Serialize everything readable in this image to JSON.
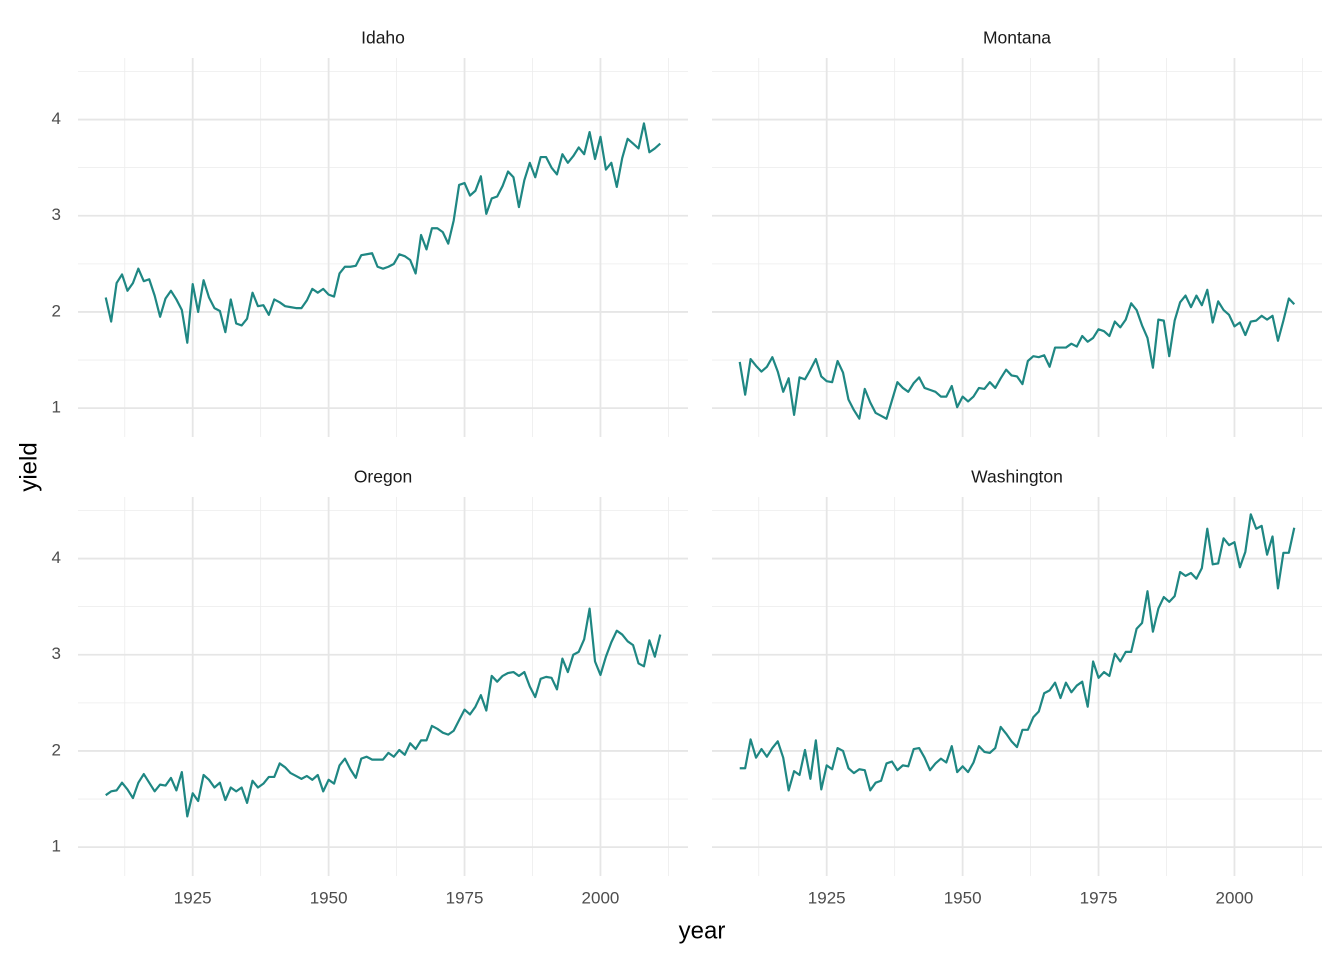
{
  "chart_data": {
    "type": "line",
    "x_label": "year",
    "y_label": "yield",
    "color": "#1f8783",
    "grid": true,
    "minor_grid": true,
    "xlim": [
      1903.9,
      2016.1
    ],
    "ylim": [
      0.7,
      4.64
    ],
    "xticks": [
      1925,
      1950,
      1975,
      2000
    ],
    "yticks": [
      1,
      2,
      3,
      4
    ],
    "x": [
      1909,
      1910,
      1911,
      1912,
      1913,
      1914,
      1915,
      1916,
      1917,
      1918,
      1919,
      1920,
      1921,
      1922,
      1923,
      1924,
      1925,
      1926,
      1927,
      1928,
      1929,
      1930,
      1931,
      1932,
      1933,
      1934,
      1935,
      1936,
      1937,
      1938,
      1939,
      1940,
      1941,
      1942,
      1943,
      1944,
      1945,
      1946,
      1947,
      1948,
      1949,
      1950,
      1951,
      1952,
      1953,
      1954,
      1955,
      1956,
      1957,
      1958,
      1959,
      1960,
      1961,
      1962,
      1963,
      1964,
      1965,
      1966,
      1967,
      1968,
      1969,
      1970,
      1971,
      1972,
      1973,
      1974,
      1975,
      1976,
      1977,
      1978,
      1979,
      1980,
      1981,
      1982,
      1983,
      1984,
      1985,
      1986,
      1987,
      1988,
      1989,
      1990,
      1991,
      1992,
      1993,
      1994,
      1995,
      1996,
      1997,
      1998,
      1999,
      2000,
      2001,
      2002,
      2003,
      2004,
      2005,
      2006,
      2007,
      2008,
      2009,
      2010,
      2011
    ],
    "panels": [
      {
        "title": "Idaho",
        "values": [
          2.15,
          1.9,
          2.3,
          2.39,
          2.22,
          2.3,
          2.45,
          2.32,
          2.34,
          2.17,
          1.95,
          2.14,
          2.22,
          2.13,
          2.02,
          1.68,
          2.29,
          2.0,
          2.33,
          2.15,
          2.04,
          2.01,
          1.79,
          2.13,
          1.88,
          1.86,
          1.93,
          2.2,
          2.06,
          2.07,
          1.97,
          2.13,
          2.1,
          2.06,
          2.05,
          2.04,
          2.04,
          2.12,
          2.24,
          2.2,
          2.24,
          2.18,
          2.16,
          2.4,
          2.47,
          2.47,
          2.48,
          2.59,
          2.6,
          2.61,
          2.47,
          2.45,
          2.47,
          2.5,
          2.6,
          2.58,
          2.54,
          2.4,
          2.8,
          2.65,
          2.87,
          2.87,
          2.83,
          2.71,
          2.95,
          3.32,
          3.34,
          3.21,
          3.26,
          3.41,
          3.02,
          3.18,
          3.2,
          3.31,
          3.46,
          3.4,
          3.09,
          3.37,
          3.55,
          3.4,
          3.61,
          3.61,
          3.5,
          3.43,
          3.64,
          3.55,
          3.62,
          3.71,
          3.64,
          3.87,
          3.59,
          3.82,
          3.48,
          3.55,
          3.3,
          3.6,
          3.8,
          3.75,
          3.7,
          3.96,
          3.66,
          3.7,
          3.75
        ]
      },
      {
        "title": "Montana",
        "values": [
          1.48,
          1.14,
          1.51,
          1.44,
          1.38,
          1.43,
          1.53,
          1.38,
          1.17,
          1.31,
          0.93,
          1.32,
          1.3,
          1.4,
          1.51,
          1.33,
          1.28,
          1.27,
          1.49,
          1.37,
          1.09,
          0.98,
          0.89,
          1.2,
          1.06,
          0.95,
          0.92,
          0.89,
          1.08,
          1.27,
          1.21,
          1.17,
          1.26,
          1.32,
          1.21,
          1.19,
          1.17,
          1.12,
          1.12,
          1.23,
          1.01,
          1.12,
          1.07,
          1.12,
          1.21,
          1.2,
          1.27,
          1.21,
          1.31,
          1.4,
          1.34,
          1.33,
          1.25,
          1.49,
          1.54,
          1.53,
          1.55,
          1.43,
          1.63,
          1.63,
          1.63,
          1.67,
          1.64,
          1.75,
          1.69,
          1.73,
          1.82,
          1.8,
          1.75,
          1.9,
          1.84,
          1.92,
          2.09,
          2.02,
          1.86,
          1.73,
          1.42,
          1.92,
          1.91,
          1.54,
          1.91,
          2.1,
          2.17,
          2.05,
          2.17,
          2.07,
          2.23,
          1.89,
          2.11,
          2.02,
          1.97,
          1.85,
          1.89,
          1.76,
          1.9,
          1.91,
          1.96,
          1.92,
          1.96,
          1.7,
          1.91,
          2.14,
          2.08
        ]
      },
      {
        "title": "Oregon",
        "values": [
          1.54,
          1.58,
          1.59,
          1.67,
          1.6,
          1.51,
          1.67,
          1.76,
          1.67,
          1.58,
          1.65,
          1.64,
          1.72,
          1.59,
          1.78,
          1.32,
          1.56,
          1.48,
          1.75,
          1.7,
          1.62,
          1.67,
          1.49,
          1.62,
          1.58,
          1.62,
          1.46,
          1.69,
          1.62,
          1.66,
          1.73,
          1.73,
          1.87,
          1.83,
          1.77,
          1.74,
          1.71,
          1.74,
          1.7,
          1.75,
          1.58,
          1.7,
          1.66,
          1.85,
          1.92,
          1.81,
          1.72,
          1.92,
          1.94,
          1.91,
          1.91,
          1.91,
          1.98,
          1.94,
          2.01,
          1.96,
          2.08,
          2.02,
          2.11,
          2.11,
          2.26,
          2.23,
          2.19,
          2.17,
          2.21,
          2.32,
          2.43,
          2.38,
          2.46,
          2.58,
          2.42,
          2.78,
          2.72,
          2.78,
          2.81,
          2.82,
          2.78,
          2.82,
          2.67,
          2.56,
          2.75,
          2.77,
          2.76,
          2.64,
          2.96,
          2.82,
          3.0,
          3.03,
          3.16,
          3.48,
          2.93,
          2.79,
          2.98,
          3.13,
          3.25,
          3.21,
          3.14,
          3.1,
          2.91,
          2.88,
          3.15,
          2.98,
          3.21
        ]
      },
      {
        "title": "Washington",
        "values": [
          1.82,
          1.82,
          2.12,
          1.93,
          2.02,
          1.94,
          2.03,
          2.1,
          1.93,
          1.59,
          1.79,
          1.75,
          2.01,
          1.71,
          2.11,
          1.6,
          1.85,
          1.81,
          2.03,
          2.0,
          1.82,
          1.77,
          1.81,
          1.8,
          1.59,
          1.67,
          1.69,
          1.87,
          1.89,
          1.8,
          1.85,
          1.84,
          2.02,
          2.03,
          1.93,
          1.8,
          1.87,
          1.92,
          1.88,
          2.05,
          1.78,
          1.84,
          1.78,
          1.88,
          2.05,
          1.99,
          1.98,
          2.03,
          2.25,
          2.18,
          2.1,
          2.04,
          2.22,
          2.22,
          2.35,
          2.41,
          2.6,
          2.63,
          2.71,
          2.55,
          2.71,
          2.61,
          2.68,
          2.72,
          2.46,
          2.93,
          2.76,
          2.82,
          2.78,
          3.01,
          2.93,
          3.03,
          3.03,
          3.27,
          3.33,
          3.66,
          3.24,
          3.48,
          3.6,
          3.55,
          3.61,
          3.86,
          3.82,
          3.85,
          3.79,
          3.9,
          4.31,
          3.94,
          3.95,
          4.21,
          4.14,
          4.17,
          3.91,
          4.07,
          4.46,
          4.31,
          4.34,
          4.04,
          4.23,
          3.69,
          4.06,
          4.06,
          4.32
        ]
      }
    ]
  }
}
